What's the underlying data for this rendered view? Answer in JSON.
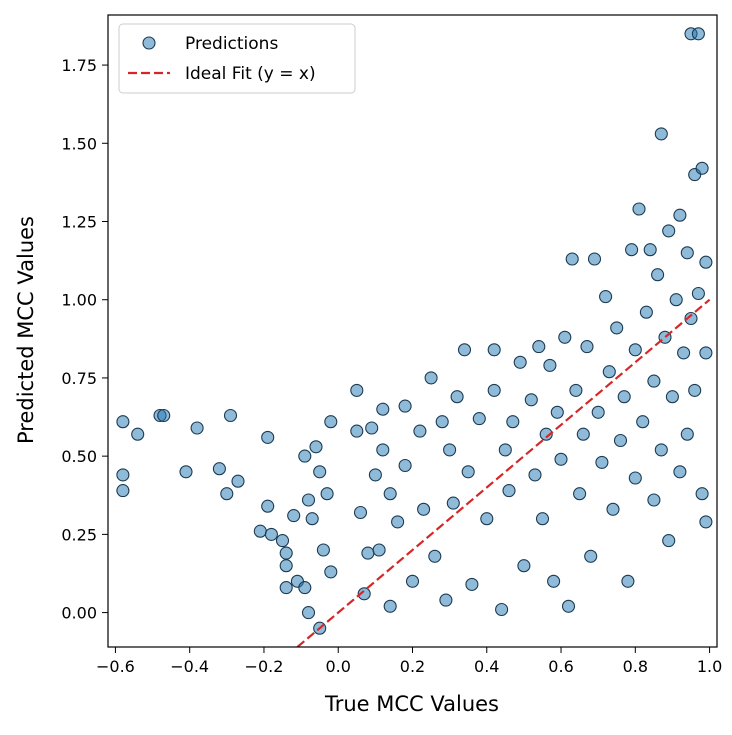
{
  "chart_data": {
    "type": "scatter",
    "xlabel": "True MCC Values",
    "ylabel": "Predicted MCC Values",
    "xlim": [
      -0.62,
      1.02
    ],
    "ylim": [
      -0.11,
      1.91
    ],
    "x_ticks": [
      "-0.6",
      "-0.4",
      "-0.2",
      "0.0",
      "0.2",
      "0.4",
      "0.6",
      "0.8",
      "1.0"
    ],
    "y_ticks": [
      "0.00",
      "0.25",
      "0.50",
      "0.75",
      "1.00",
      "1.25",
      "1.50",
      "1.75"
    ],
    "grid": false,
    "legend_position": "top-left",
    "series": [
      {
        "name": "Predictions",
        "kind": "scatter",
        "color": "#1f77b4",
        "points": [
          [
            -0.58,
            0.61
          ],
          [
            -0.58,
            0.44
          ],
          [
            -0.58,
            0.39
          ],
          [
            -0.54,
            0.57
          ],
          [
            -0.48,
            0.63
          ],
          [
            -0.47,
            0.63
          ],
          [
            -0.41,
            0.45
          ],
          [
            -0.38,
            0.59
          ],
          [
            -0.32,
            0.46
          ],
          [
            -0.29,
            0.63
          ],
          [
            -0.3,
            0.38
          ],
          [
            -0.27,
            0.42
          ],
          [
            -0.19,
            0.56
          ],
          [
            -0.19,
            0.34
          ],
          [
            -0.21,
            0.26
          ],
          [
            -0.18,
            0.25
          ],
          [
            -0.15,
            0.23
          ],
          [
            -0.14,
            0.19
          ],
          [
            -0.14,
            0.15
          ],
          [
            -0.14,
            0.08
          ],
          [
            -0.12,
            0.31
          ],
          [
            -0.11,
            0.1
          ],
          [
            -0.09,
            0.5
          ],
          [
            -0.08,
            0.36
          ],
          [
            -0.07,
            0.3
          ],
          [
            -0.06,
            0.53
          ],
          [
            -0.05,
            0.45
          ],
          [
            -0.04,
            0.2
          ],
          [
            -0.03,
            0.38
          ],
          [
            -0.02,
            0.61
          ],
          [
            -0.02,
            0.13
          ],
          [
            -0.09,
            0.08
          ],
          [
            -0.08,
            0.0
          ],
          [
            -0.05,
            -0.05
          ],
          [
            0.05,
            0.71
          ],
          [
            0.05,
            0.58
          ],
          [
            0.06,
            0.32
          ],
          [
            0.07,
            0.06
          ],
          [
            0.08,
            0.19
          ],
          [
            0.09,
            0.59
          ],
          [
            0.1,
            0.44
          ],
          [
            0.11,
            0.2
          ],
          [
            0.12,
            0.65
          ],
          [
            0.12,
            0.52
          ],
          [
            0.14,
            0.38
          ],
          [
            0.14,
            0.02
          ],
          [
            0.16,
            0.29
          ],
          [
            0.18,
            0.66
          ],
          [
            0.18,
            0.47
          ],
          [
            0.2,
            0.1
          ],
          [
            0.22,
            0.58
          ],
          [
            0.23,
            0.33
          ],
          [
            0.25,
            0.75
          ],
          [
            0.26,
            0.18
          ],
          [
            0.28,
            0.61
          ],
          [
            0.29,
            0.04
          ],
          [
            0.3,
            0.52
          ],
          [
            0.31,
            0.35
          ],
          [
            0.32,
            0.69
          ],
          [
            0.34,
            0.84
          ],
          [
            0.35,
            0.45
          ],
          [
            0.36,
            0.09
          ],
          [
            0.38,
            0.62
          ],
          [
            0.4,
            0.3
          ],
          [
            0.42,
            0.71
          ],
          [
            0.42,
            0.84
          ],
          [
            0.44,
            0.01
          ],
          [
            0.45,
            0.52
          ],
          [
            0.46,
            0.39
          ],
          [
            0.47,
            0.61
          ],
          [
            0.49,
            0.8
          ],
          [
            0.5,
            0.15
          ],
          [
            0.52,
            0.68
          ],
          [
            0.53,
            0.44
          ],
          [
            0.54,
            0.85
          ],
          [
            0.55,
            0.3
          ],
          [
            0.56,
            0.57
          ],
          [
            0.57,
            0.79
          ],
          [
            0.58,
            0.1
          ],
          [
            0.59,
            0.64
          ],
          [
            0.6,
            0.49
          ],
          [
            0.61,
            0.88
          ],
          [
            0.62,
            0.02
          ],
          [
            0.63,
            1.13
          ],
          [
            0.64,
            0.71
          ],
          [
            0.65,
            0.38
          ],
          [
            0.66,
            0.57
          ],
          [
            0.67,
            0.85
          ],
          [
            0.68,
            0.18
          ],
          [
            0.69,
            1.13
          ],
          [
            0.7,
            0.64
          ],
          [
            0.71,
            0.48
          ],
          [
            0.72,
            1.01
          ],
          [
            0.73,
            0.77
          ],
          [
            0.74,
            0.33
          ],
          [
            0.75,
            0.91
          ],
          [
            0.76,
            0.55
          ],
          [
            0.77,
            0.69
          ],
          [
            0.78,
            0.1
          ],
          [
            0.79,
            1.16
          ],
          [
            0.8,
            0.84
          ],
          [
            0.8,
            0.43
          ],
          [
            0.81,
            1.29
          ],
          [
            0.82,
            0.61
          ],
          [
            0.83,
            0.96
          ],
          [
            0.84,
            1.16
          ],
          [
            0.85,
            0.74
          ],
          [
            0.85,
            0.36
          ],
          [
            0.86,
            1.08
          ],
          [
            0.87,
            1.53
          ],
          [
            0.87,
            0.52
          ],
          [
            0.88,
            0.88
          ],
          [
            0.89,
            1.22
          ],
          [
            0.89,
            0.23
          ],
          [
            0.9,
            0.69
          ],
          [
            0.91,
            1.0
          ],
          [
            0.92,
            1.27
          ],
          [
            0.92,
            0.45
          ],
          [
            0.93,
            0.83
          ],
          [
            0.94,
            1.15
          ],
          [
            0.94,
            0.57
          ],
          [
            0.95,
            0.94
          ],
          [
            0.95,
            1.85
          ],
          [
            0.96,
            1.4
          ],
          [
            0.96,
            0.71
          ],
          [
            0.97,
            1.85
          ],
          [
            0.97,
            1.02
          ],
          [
            0.98,
            0.38
          ],
          [
            0.98,
            1.42
          ],
          [
            0.99,
            0.29
          ],
          [
            0.99,
            0.83
          ],
          [
            0.99,
            1.12
          ]
        ]
      },
      {
        "name": "Ideal Fit (y = x)",
        "kind": "line",
        "color": "#d62728",
        "x": [
          -0.11,
          1.0
        ],
        "y": [
          -0.11,
          1.0
        ]
      }
    ]
  }
}
